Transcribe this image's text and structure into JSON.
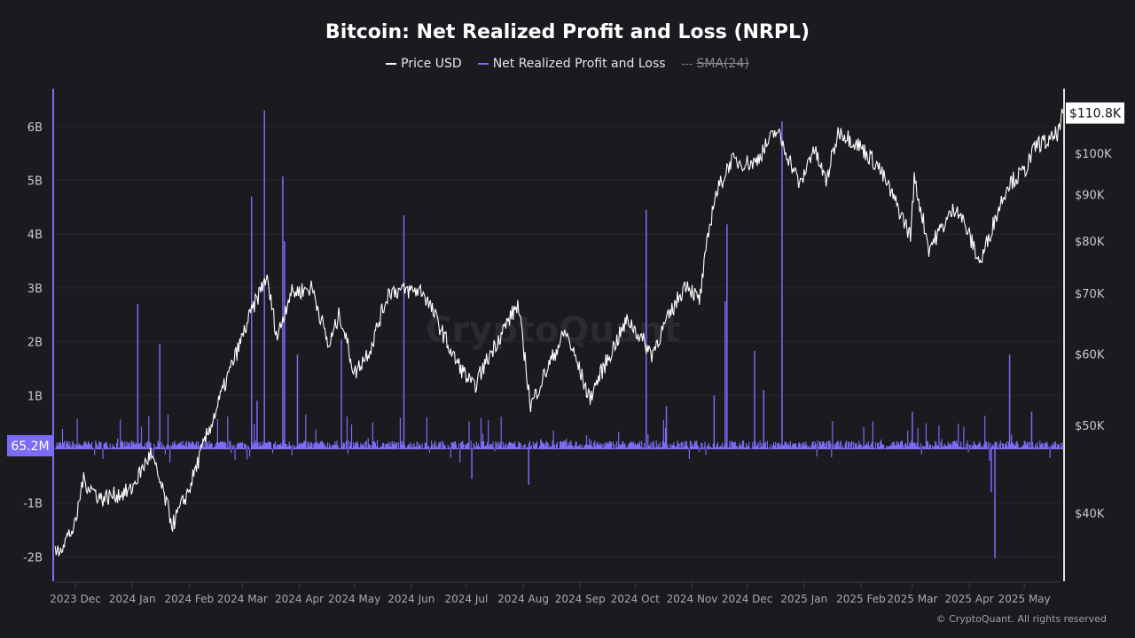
{
  "chart_data": {
    "type": "line",
    "title": "Bitcoin: Net Realized Profit and Loss (NRPL)",
    "legend": [
      {
        "name": "Price USD",
        "color": "#ffffff",
        "active": true
      },
      {
        "name": "Net Realized Profit and Loss",
        "color": "#7b6cf6",
        "active": true
      },
      {
        "name": "SMA(24)",
        "color": "#8a8a92",
        "active": false
      }
    ],
    "legend_placement": "top-center",
    "grid": true,
    "left_axis": {
      "unit": "USD",
      "ticks": [
        "6B",
        "5B",
        "4B",
        "3B",
        "2B",
        "1B",
        "-1B",
        "-2B"
      ],
      "tick_values": [
        6000000000.0,
        5000000000.0,
        4000000000.0,
        3000000000.0,
        2000000000.0,
        1000000000.0,
        -1000000000.0,
        -2000000000.0
      ],
      "range": [
        -2400000000.0,
        6700000000.0
      ],
      "current_label": "65.2M"
    },
    "right_axis": {
      "scale": "log",
      "ticks": [
        "$100K",
        "$90K",
        "$80K",
        "$70K",
        "$60K",
        "$50K",
        "$40K"
      ],
      "tick_values": [
        100000,
        90000,
        80000,
        70000,
        60000,
        50000,
        40000
      ],
      "current_label": "$110.8K"
    },
    "x_axis": {
      "ticks": [
        "2023 Dec",
        "2024 Jan",
        "2024 Feb",
        "2024 Mar",
        "2024 Apr",
        "2024 May",
        "2024 Jun",
        "2024 Jul",
        "2024 Aug",
        "2024 Sep",
        "2024 Oct",
        "2024 Nov",
        "2024 Dec",
        "2025 Jan",
        "2025 Feb",
        "2025 Mar",
        "2025 Apr",
        "2025 May"
      ],
      "tick_dates": [
        "2023-12-01",
        "2024-01-01",
        "2024-02-01",
        "2024-03-01",
        "2024-04-01",
        "2024-05-01",
        "2024-06-01",
        "2024-07-01",
        "2024-08-01",
        "2024-09-01",
        "2024-10-01",
        "2024-11-01",
        "2024-12-01",
        "2025-01-01",
        "2025-02-01",
        "2025-03-01",
        "2025-04-01",
        "2025-05-01"
      ],
      "range": [
        "2023-11-20",
        "2025-05-22"
      ]
    },
    "series": [
      {
        "name": "Price USD",
        "axis": "right",
        "points": [
          [
            "2023-11-20",
            36000
          ],
          [
            "2023-12-01",
            38700
          ],
          [
            "2023-12-05",
            43500
          ],
          [
            "2023-12-15",
            41500
          ],
          [
            "2023-12-31",
            42300
          ],
          [
            "2024-01-11",
            46500
          ],
          [
            "2024-01-23",
            38800
          ],
          [
            "2024-02-01",
            42500
          ],
          [
            "2024-02-15",
            51500
          ],
          [
            "2024-02-28",
            61000
          ],
          [
            "2024-03-05",
            66000
          ],
          [
            "2024-03-14",
            73000
          ],
          [
            "2024-03-20",
            62500
          ],
          [
            "2024-03-27",
            70000
          ],
          [
            "2024-04-08",
            71000
          ],
          [
            "2024-04-17",
            61000
          ],
          [
            "2024-04-23",
            66500
          ],
          [
            "2024-05-01",
            57000
          ],
          [
            "2024-05-10",
            61000
          ],
          [
            "2024-05-20",
            70500
          ],
          [
            "2024-06-07",
            70500
          ],
          [
            "2024-06-24",
            59500
          ],
          [
            "2024-07-05",
            55000
          ],
          [
            "2024-07-14",
            60000
          ],
          [
            "2024-07-29",
            68000
          ],
          [
            "2024-08-05",
            52500
          ],
          [
            "2024-08-24",
            63500
          ],
          [
            "2024-09-06",
            53500
          ],
          [
            "2024-09-27",
            65500
          ],
          [
            "2024-10-10",
            60000
          ],
          [
            "2024-10-29",
            72000
          ],
          [
            "2024-11-05",
            68500
          ],
          [
            "2024-11-13",
            89000
          ],
          [
            "2024-11-22",
            98000
          ],
          [
            "2024-12-05",
            97500
          ],
          [
            "2024-12-17",
            106000
          ],
          [
            "2024-12-30",
            92000
          ],
          [
            "2025-01-06",
            101500
          ],
          [
            "2025-01-13",
            93000
          ],
          [
            "2025-01-20",
            106000
          ],
          [
            "2025-01-31",
            102000
          ],
          [
            "2025-02-10",
            97000
          ],
          [
            "2025-02-28",
            81000
          ],
          [
            "2025-03-02",
            93500
          ],
          [
            "2025-03-10",
            78500
          ],
          [
            "2025-03-25",
            87500
          ],
          [
            "2025-04-07",
            75500
          ],
          [
            "2025-04-22",
            92500
          ],
          [
            "2025-05-01",
            95500
          ],
          [
            "2025-05-08",
            102500
          ],
          [
            "2025-05-15",
            103000
          ],
          [
            "2025-05-20",
            106000
          ],
          [
            "2025-05-22",
            110800
          ]
        ]
      },
      {
        "name": "Net Realized Profit and Loss",
        "axis": "left",
        "baseline": 65200000,
        "spikes": [
          [
            "2024-01-04",
            2700000000.0
          ],
          [
            "2024-01-16",
            1960000000.0
          ],
          [
            "2024-03-06",
            4700000000.0
          ],
          [
            "2024-03-09",
            900000000.0
          ],
          [
            "2024-03-13",
            6300000000.0
          ],
          [
            "2024-03-23",
            5070000000.0
          ],
          [
            "2024-03-24",
            3870000000.0
          ],
          [
            "2024-03-31",
            1760000000.0
          ],
          [
            "2024-04-24",
            2040000000.0
          ],
          [
            "2024-05-28",
            4350000000.0
          ],
          [
            "2024-07-04",
            -550000000.0
          ],
          [
            "2024-08-04",
            -660000000.0
          ],
          [
            "2024-10-07",
            4450000000.0
          ],
          [
            "2024-10-18",
            800000000.0
          ],
          [
            "2024-11-13",
            1000000000.0
          ],
          [
            "2024-11-19",
            2750000000.0
          ],
          [
            "2024-11-20",
            4180000000.0
          ],
          [
            "2024-12-05",
            1830000000.0
          ],
          [
            "2024-12-10",
            1100000000.0
          ],
          [
            "2024-12-20",
            6100000000.0
          ],
          [
            "2025-03-01",
            700000000.0
          ],
          [
            "2025-04-13",
            -800000000.0
          ],
          [
            "2025-04-15",
            -2030000000.0
          ],
          [
            "2025-04-23",
            1760000000.0
          ],
          [
            "2025-05-05",
            700000000.0
          ]
        ]
      }
    ],
    "watermark": "CryptoQuant"
  },
  "footer": {
    "copyright": "© CryptoQuant. All rights reserved"
  }
}
